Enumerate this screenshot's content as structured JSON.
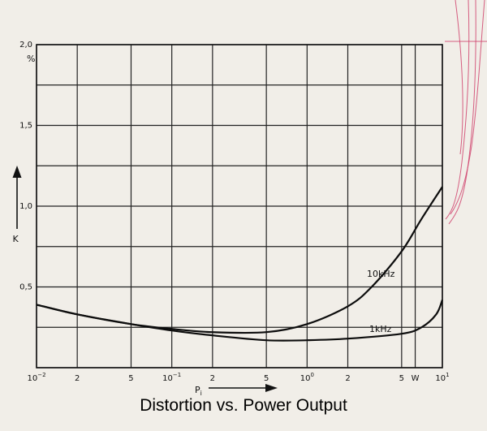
{
  "caption": "Distortion vs. Power Output",
  "chart_data": {
    "type": "line",
    "x_scale": "log",
    "xlim": [
      0.01,
      10
    ],
    "ylim": [
      0,
      2.0
    ],
    "y_ticks": [
      {
        "value": 0.5,
        "label": "0,5"
      },
      {
        "value": 1.0,
        "label": "1,0"
      },
      {
        "value": 1.5,
        "label": "1,5"
      },
      {
        "value": 2.0,
        "label": "2,0"
      }
    ],
    "y_unit": "%",
    "ylabel": "K",
    "xlabel": "P",
    "xlabel_subscript": "i",
    "x_ticks": [
      {
        "value": 0.01,
        "base": "10",
        "exp": "−2"
      },
      {
        "value": 0.02,
        "base": "2"
      },
      {
        "value": 0.05,
        "base": "5"
      },
      {
        "value": 0.1,
        "base": "10",
        "exp": "−1"
      },
      {
        "value": 0.2,
        "base": "2"
      },
      {
        "value": 0.5,
        "base": "5"
      },
      {
        "value": 1,
        "base": "10",
        "exp": "0"
      },
      {
        "value": 2,
        "base": "2"
      },
      {
        "value": 5,
        "base": "5"
      },
      {
        "value": 6.3,
        "base": "W"
      },
      {
        "value": 10,
        "base": "10",
        "exp": "1"
      }
    ],
    "grid": true,
    "series": [
      {
        "name": "10kHz",
        "x": [
          0.01,
          0.02,
          0.05,
          0.1,
          0.2,
          0.5,
          1,
          2,
          3,
          5,
          7,
          10
        ],
        "y": [
          0.39,
          0.33,
          0.27,
          0.24,
          0.22,
          0.22,
          0.27,
          0.38,
          0.5,
          0.72,
          0.92,
          1.12
        ]
      },
      {
        "name": "1kHz",
        "x": [
          0.01,
          0.02,
          0.05,
          0.1,
          0.2,
          0.5,
          1,
          2,
          5,
          7,
          9,
          10
        ],
        "y": [
          0.39,
          0.33,
          0.27,
          0.23,
          0.2,
          0.17,
          0.17,
          0.18,
          0.21,
          0.25,
          0.33,
          0.42
        ]
      }
    ]
  }
}
